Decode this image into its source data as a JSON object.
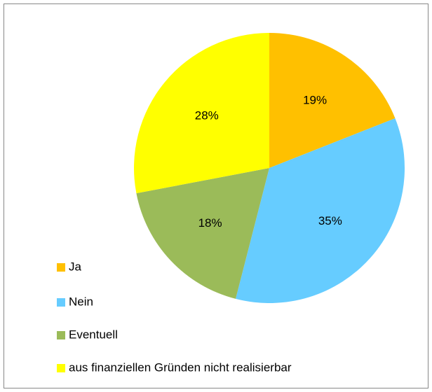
{
  "chart_data": {
    "type": "pie",
    "categories": [
      "Ja",
      "Nein",
      "Eventuell",
      "aus finanziellen Gründen nicht realisierbar"
    ],
    "values": [
      19,
      35,
      18,
      28
    ],
    "value_labels": [
      "19%",
      "35%",
      "18%",
      "28%"
    ],
    "colors": [
      "#ffc000",
      "#66ccff",
      "#9bbb59",
      "#ffff00"
    ],
    "legend": "bottom-left"
  }
}
